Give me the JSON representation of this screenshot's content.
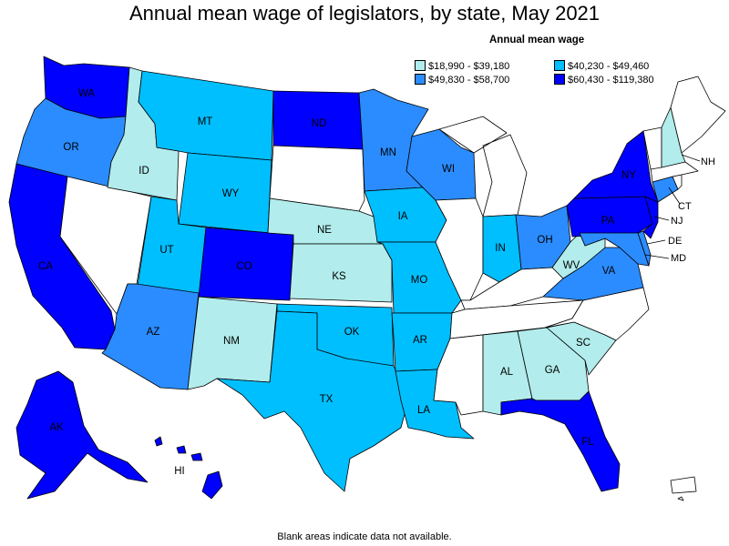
{
  "title": "Annual mean wage of legislators, by state, May 2021",
  "legend": {
    "title": "Annual mean wage",
    "bins": [
      {
        "label": "$18,990 - $39,180",
        "color": "#b2ecec"
      },
      {
        "label": "$40,230 - $49,460",
        "color": "#00bfff"
      },
      {
        "label": "$49,830 - $58,700",
        "color": "#2b8cff"
      },
      {
        "label": "$60,430 - $119,380",
        "color": "#0000ff"
      }
    ],
    "no_data_color": "#ffffff"
  },
  "footnote": "Blank areas indicate data not available.",
  "states": [
    {
      "abbr": "WA",
      "bin": 3
    },
    {
      "abbr": "OR",
      "bin": 2
    },
    {
      "abbr": "CA",
      "bin": 3
    },
    {
      "abbr": "NV",
      "bin": -1
    },
    {
      "abbr": "ID",
      "bin": 0
    },
    {
      "abbr": "MT",
      "bin": 1
    },
    {
      "abbr": "WY",
      "bin": 1
    },
    {
      "abbr": "UT",
      "bin": 1
    },
    {
      "abbr": "AZ",
      "bin": 2
    },
    {
      "abbr": "CO",
      "bin": 3
    },
    {
      "abbr": "NM",
      "bin": 0
    },
    {
      "abbr": "ND",
      "bin": 3
    },
    {
      "abbr": "SD",
      "bin": -1
    },
    {
      "abbr": "NE",
      "bin": 0
    },
    {
      "abbr": "KS",
      "bin": 0
    },
    {
      "abbr": "OK",
      "bin": 1
    },
    {
      "abbr": "TX",
      "bin": 1
    },
    {
      "abbr": "MN",
      "bin": 2
    },
    {
      "abbr": "IA",
      "bin": 1
    },
    {
      "abbr": "MO",
      "bin": 1
    },
    {
      "abbr": "AR",
      "bin": 1
    },
    {
      "abbr": "LA",
      "bin": 1
    },
    {
      "abbr": "WI",
      "bin": 2
    },
    {
      "abbr": "IL",
      "bin": -1
    },
    {
      "abbr": "MI",
      "bin": -1
    },
    {
      "abbr": "IN",
      "bin": 1
    },
    {
      "abbr": "OH",
      "bin": 2
    },
    {
      "abbr": "KY",
      "bin": -1
    },
    {
      "abbr": "TN",
      "bin": -1
    },
    {
      "abbr": "MS",
      "bin": -1
    },
    {
      "abbr": "AL",
      "bin": 0
    },
    {
      "abbr": "GA",
      "bin": 0
    },
    {
      "abbr": "FL",
      "bin": 3
    },
    {
      "abbr": "SC",
      "bin": 0
    },
    {
      "abbr": "NC",
      "bin": -1
    },
    {
      "abbr": "VA",
      "bin": 2
    },
    {
      "abbr": "WV",
      "bin": 0
    },
    {
      "abbr": "MD",
      "bin": 2
    },
    {
      "abbr": "DE",
      "bin": 2
    },
    {
      "abbr": "PA",
      "bin": 3
    },
    {
      "abbr": "NJ",
      "bin": 3
    },
    {
      "abbr": "NY",
      "bin": 3
    },
    {
      "abbr": "CT",
      "bin": 2
    },
    {
      "abbr": "RI",
      "bin": -1
    },
    {
      "abbr": "MA",
      "bin": -1
    },
    {
      "abbr": "VT",
      "bin": -1
    },
    {
      "abbr": "NH",
      "bin": 0
    },
    {
      "abbr": "ME",
      "bin": -1
    },
    {
      "abbr": "AK",
      "bin": 3
    },
    {
      "abbr": "HI",
      "bin": 3
    },
    {
      "abbr": "PR",
      "bin": -1
    }
  ]
}
